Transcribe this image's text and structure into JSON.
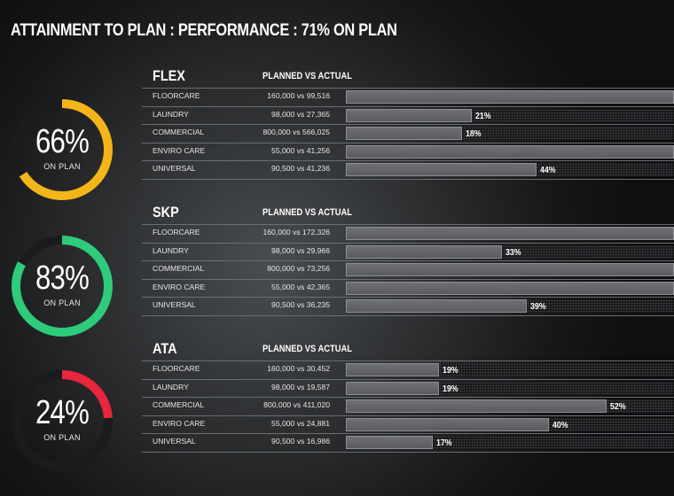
{
  "title": "ATTAINMENT TO PLAN : PERFORMANCE : 71% ON PLAN",
  "colors": {
    "track": "#1a1b1c",
    "flex": "#f3b51a",
    "skp": "#2ecc7a",
    "ata": "#e8263c"
  },
  "sections": [
    {
      "name": "FLEX",
      "subtitle": "PLANNED VS ACTUAL",
      "gauge": {
        "percent_label": "66%",
        "value": 0.66,
        "caption": "ON PLAN",
        "color": "#f3b51a"
      },
      "rows": [
        {
          "label": "FLOORCARE",
          "planned_vs_actual": "160,000 vs 99,516",
          "fill": 1.0,
          "pct_label": ""
        },
        {
          "label": "LAUNDRY",
          "planned_vs_actual": "98,000 vs 27,365",
          "fill": 0.385,
          "pct_label": "21%"
        },
        {
          "label": "COMMERCIAL",
          "planned_vs_actual": "800,000 vs 566,025",
          "fill": 0.355,
          "pct_label": "18%"
        },
        {
          "label": "ENVIRO CARE",
          "planned_vs_actual": "55,000 vs 41,256",
          "fill": 1.0,
          "pct_label": ""
        },
        {
          "label": "UNIVERSAL",
          "planned_vs_actual": "90,500 vs 41,236",
          "fill": 0.58,
          "pct_label": "44%"
        }
      ]
    },
    {
      "name": "SKP",
      "subtitle": "PLANNED VS ACTUAL",
      "gauge": {
        "percent_label": "83%",
        "value": 0.83,
        "caption": "ON PLAN",
        "color": "#2ecc7a"
      },
      "rows": [
        {
          "label": "FLOORCARE",
          "planned_vs_actual": "160,000 vs 172,326",
          "fill": 1.0,
          "pct_label": ""
        },
        {
          "label": "LAUNDRY",
          "planned_vs_actual": "98,000 vs 29,966",
          "fill": 0.475,
          "pct_label": "33%"
        },
        {
          "label": "COMMERCIAL",
          "planned_vs_actual": "800,000 vs 73,256",
          "fill": 1.0,
          "pct_label": ""
        },
        {
          "label": "ENVIRO CARE",
          "planned_vs_actual": "55,000 vs 42,365",
          "fill": 1.0,
          "pct_label": ""
        },
        {
          "label": "UNIVERSAL",
          "planned_vs_actual": "90,500 vs 36,235",
          "fill": 0.55,
          "pct_label": "39%"
        }
      ]
    },
    {
      "name": "ATA",
      "subtitle": "PLANNED VS ACTUAL",
      "gauge": {
        "percent_label": "24%",
        "value": 0.24,
        "caption": "ON PLAN",
        "color": "#e8263c"
      },
      "rows": [
        {
          "label": "FLOORCARE",
          "planned_vs_actual": "160,000 vs 30,452",
          "fill": 0.285,
          "pct_label": "19%"
        },
        {
          "label": "LAUNDRY",
          "planned_vs_actual": "98,000 vs 19,587",
          "fill": 0.285,
          "pct_label": "19%"
        },
        {
          "label": "COMMERCIAL",
          "planned_vs_actual": "800,000 vs 411,020",
          "fill": 0.795,
          "pct_label": "52%"
        },
        {
          "label": "ENVIRO CARE",
          "planned_vs_actual": "55,000 vs 24,881",
          "fill": 0.62,
          "pct_label": "40%"
        },
        {
          "label": "UNIVERSAL",
          "planned_vs_actual": "90,500 vs 16,986",
          "fill": 0.265,
          "pct_label": "17%"
        }
      ]
    }
  ]
}
